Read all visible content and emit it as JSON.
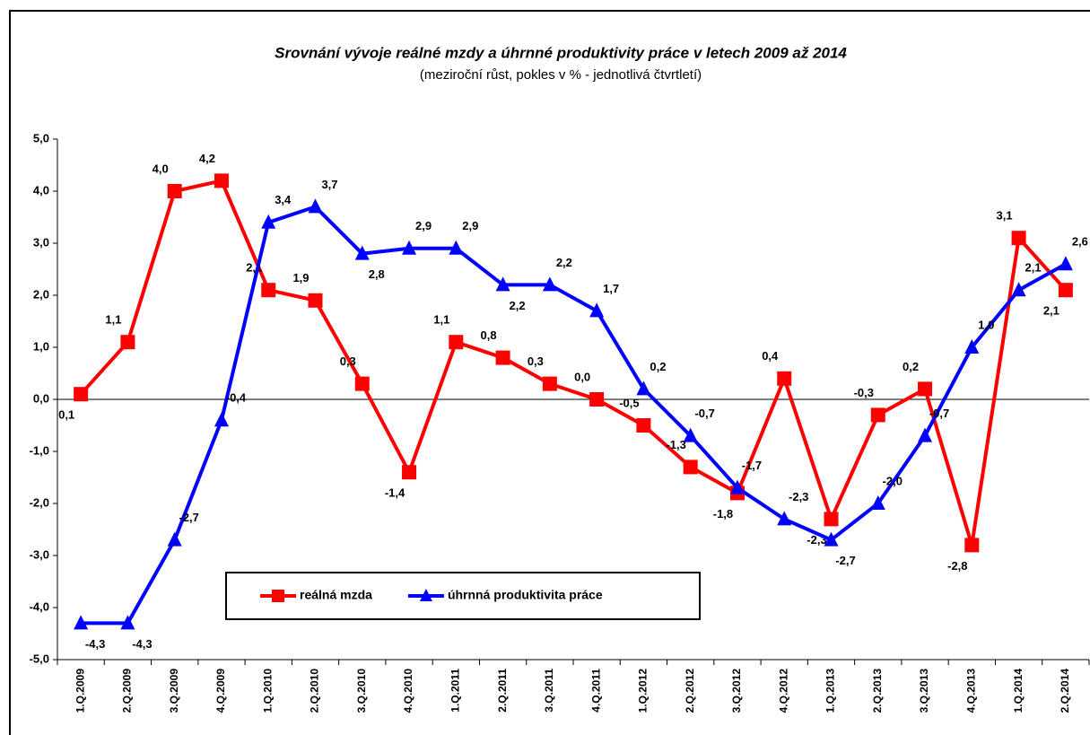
{
  "chart_data": {
    "type": "line",
    "title": "Srovnání vývoje reálné mzdy a úhrnné produktivity  práce v letech 2009 až 2014",
    "subtitle": "(meziroční růst, pokles v % - jednotlivá čtvrtletí)",
    "categories": [
      "1.Q.2009",
      "2.Q.2009",
      "3.Q.2009",
      "4.Q.2009",
      "1.Q.2010",
      "2.Q.2010",
      "3.Q.2010",
      "4.Q.2010",
      "1.Q.2011",
      "2.Q.2011",
      "3.Q.2011",
      "4.Q.2011",
      "1.Q.2012",
      "2.Q.2012",
      "3.Q.2012",
      "4.Q.2012",
      "1.Q.2013",
      "2.Q.2013",
      "3.Q.2013",
      "4.Q.2013",
      "1.Q.2014",
      "2.Q.2014"
    ],
    "series": [
      {
        "name": "reálná mzda",
        "color": "#ff0000",
        "marker": "square",
        "values": [
          0.1,
          1.1,
          4.0,
          4.2,
          2.1,
          1.9,
          0.3,
          -1.4,
          1.1,
          0.8,
          0.3,
          0.0,
          -0.5,
          -1.3,
          -1.8,
          0.4,
          -2.3,
          -0.3,
          0.2,
          -2.8,
          3.1,
          2.1
        ],
        "value_labels": [
          "0,1",
          "1,1",
          "4,0",
          "4,2",
          "2,1",
          "1,9",
          "0,3",
          "-1,4",
          "1,1",
          "0,8",
          "0,3",
          "0,0",
          "-0,5",
          "-1,3",
          "-1,8",
          "0,4",
          "-2,3",
          "-0,3",
          "0,2",
          "-2,8",
          "3,1",
          "2,1"
        ]
      },
      {
        "name": "úhrnná produktivita práce",
        "color": "#0000ff",
        "marker": "triangle",
        "values": [
          -4.3,
          -4.3,
          -2.7,
          -0.4,
          3.4,
          3.7,
          2.8,
          2.9,
          2.9,
          2.2,
          2.2,
          1.7,
          0.2,
          -0.7,
          -1.7,
          -2.3,
          -2.7,
          -2.0,
          -0.7,
          1.0,
          2.1,
          2.6
        ],
        "value_labels": [
          "-4,3",
          "-4,3",
          "-2,7",
          "-0,4",
          "3,4",
          "3,7",
          "2,8",
          "2,9",
          "2,9",
          "2,2",
          "2,2",
          "1,7",
          "0,2",
          "-0,7",
          "-1,7",
          "-2,3",
          "-2,7",
          "-2,0",
          "-0,7",
          "1,0",
          "2,1",
          "2,6"
        ]
      }
    ],
    "ylim": [
      -5,
      5
    ],
    "yticks": [
      {
        "value": 5,
        "label": "5,0"
      },
      {
        "value": 4,
        "label": "4,0"
      },
      {
        "value": 3,
        "label": "3,0"
      },
      {
        "value": 2,
        "label": "2,0"
      },
      {
        "value": 1,
        "label": "1,0"
      },
      {
        "value": 0,
        "label": "0,0"
      },
      {
        "value": -1,
        "label": "-1,0"
      },
      {
        "value": -2,
        "label": "-2,0"
      },
      {
        "value": -3,
        "label": "-3,0"
      },
      {
        "value": -4,
        "label": "-4,0"
      },
      {
        "value": -5,
        "label": "-5,0"
      }
    ],
    "grid": false
  }
}
